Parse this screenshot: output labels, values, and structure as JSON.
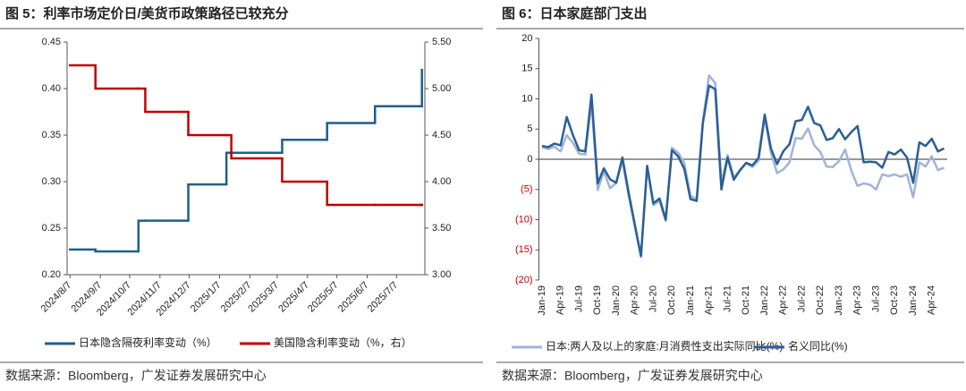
{
  "chart_data": [
    {
      "type": "line",
      "step": true,
      "title": "图 5：利率市场定价日/美货币政策路径已较充分",
      "x": [
        "2024/8/7",
        "2024/9/2",
        "2024/10/16",
        "2024/10/23",
        "2024/12/6",
        "2025/1/14",
        "2025/1/19",
        "2025/3/12",
        "2025/4/27",
        "2025/6/15",
        "2025/8/1",
        "2025/8/2"
      ],
      "xlim": [
        "2024/8/4",
        "2025/8/5"
      ],
      "xticks": [
        "2024/8/7",
        "2024/9/7",
        "2024/10/7",
        "2024/11/7",
        "2024/12/7",
        "2025/1/7",
        "2025/2/7",
        "2025/3/7",
        "2025/4/7",
        "2025/5/7",
        "2025/6/7",
        "2025/7/7"
      ],
      "ylim": [
        0.2,
        0.45
      ],
      "yticks": [
        {
          "value": 0.2,
          "label": "0.20"
        },
        0.25,
        {
          "value": 0.3,
          "label": "0.30"
        },
        0.35,
        {
          "value": 0.4,
          "label": "0.40"
        },
        0.45
      ],
      "y2lim": [
        3.0,
        5.5
      ],
      "y2ticks": [
        {
          "value": 3.0,
          "label": "3.00"
        },
        {
          "value": 3.5,
          "label": "3.50"
        },
        {
          "value": 4.0,
          "label": "4.00"
        },
        {
          "value": 4.5,
          "label": "4.50"
        },
        {
          "value": 5.0,
          "label": "5.00"
        },
        {
          "value": 5.5,
          "label": "5.50"
        }
      ],
      "series": [
        {
          "name": "日本隐含隔夜利率变动（%）",
          "color": "#1f5f8b",
          "values": [
            0.227,
            0.225,
            0.258,
            0.258,
            0.297,
            0.331,
            0.331,
            0.345,
            0.363,
            0.381,
            0.381,
            0.42
          ]
        },
        {
          "name": "美国隐含利率变动（%，右）",
          "color": "#c00000",
          "axis": "y2",
          "values": [
            5.25,
            5.0,
            5.0,
            4.75,
            4.5,
            4.5,
            4.25,
            4.0,
            3.75,
            3.75,
            3.75,
            3.75
          ]
        }
      ],
      "legend": "bottom",
      "source": "数据来源：Bloomberg，广发证券发展研究中心"
    },
    {
      "type": "line",
      "title": "图 6：日本家庭部门支出",
      "categories": [
        "Jan-19",
        null,
        null,
        "Apr-19",
        null,
        null,
        "Jul-19",
        null,
        null,
        "Oct-19",
        null,
        null,
        "Jan-20",
        null,
        null,
        "Apr-20",
        null,
        null,
        "Jul-20",
        null,
        null,
        "Oct-20",
        null,
        null,
        "Jan-21",
        null,
        null,
        "Apr-21",
        null,
        null,
        "Jul-21",
        null,
        null,
        "Oct-21",
        null,
        null,
        "Jan-22",
        null,
        null,
        "Apr-22",
        null,
        null,
        "Jul-22",
        null,
        null,
        "Oct-22",
        null,
        null,
        "Jan-23",
        null,
        null,
        "Apr-23",
        null,
        null,
        "Jul-23",
        null,
        null,
        "Oct-23",
        null,
        null,
        "Jan-24",
        null,
        null,
        "Apr-24",
        null,
        null
      ],
      "ylim": [
        -20,
        20
      ],
      "yticks": [
        {
          "value": -20,
          "label": "(20)"
        },
        {
          "value": -15,
          "label": "(15)"
        },
        {
          "value": -10,
          "label": "(10)"
        },
        {
          "value": -5,
          "label": "(5)"
        },
        0,
        5,
        10,
        15,
        20
      ],
      "negative_tick_color": "#c00000",
      "series": [
        {
          "name": "日本:两人及以上的家庭:月消费性支出实际同比(%)",
          "color": "#9fb4d8",
          "values": [
            2.0,
            1.7,
            2.1,
            1.3,
            4.0,
            2.7,
            0.9,
            0.8,
            9.5,
            -5.1,
            -2.0,
            -4.8,
            -3.9,
            -0.3,
            -6.0,
            -11.1,
            -16.2,
            -1.2,
            -7.6,
            -6.9,
            -10.2,
            1.9,
            1.1,
            -0.6,
            -6.1,
            -6.6,
            6.2,
            13.9,
            12.6,
            -3.9,
            0.7,
            -3.0,
            -1.9,
            -0.6,
            -1.3,
            -0.2,
            6.9,
            1.1,
            -2.3,
            -1.7,
            -0.5,
            3.5,
            3.4,
            5.1,
            2.3,
            1.2,
            -1.2,
            -1.3,
            -0.3,
            1.6,
            -1.9,
            -4.4,
            -4.0,
            -4.2,
            -5.0,
            -2.5,
            -2.8,
            -2.5,
            -2.9,
            -2.5,
            -6.3,
            -0.5,
            -1.2,
            0.5,
            -1.8,
            -1.4
          ]
        },
        {
          "name": "名义同比(%)",
          "color": "#2a5f95",
          "values": [
            2.2,
            2.0,
            2.6,
            2.3,
            7.0,
            4.0,
            1.5,
            1.3,
            10.7,
            -4.0,
            -1.5,
            -3.3,
            -3.9,
            0.3,
            -5.5,
            -10.8,
            -16.0,
            -1.1,
            -7.3,
            -6.5,
            -10.0,
            1.5,
            0.5,
            -1.6,
            -6.6,
            -6.9,
            6.0,
            12.2,
            11.6,
            -5.0,
            0.3,
            -3.4,
            -1.8,
            -0.6,
            -1.0,
            0.2,
            7.4,
            1.8,
            -0.8,
            1.3,
            2.5,
            6.3,
            6.5,
            8.7,
            6.0,
            5.6,
            3.2,
            3.5,
            5.0,
            3.3,
            4.5,
            5.5,
            -0.5,
            -0.4,
            -0.5,
            -1.4,
            1.2,
            0.8,
            1.6,
            0.3,
            -3.9,
            2.8,
            2.2,
            3.4,
            1.3,
            1.8
          ]
        }
      ],
      "legend": "bottom",
      "source": "数据来源：Bloomberg，广发证券发展研究中心"
    }
  ]
}
